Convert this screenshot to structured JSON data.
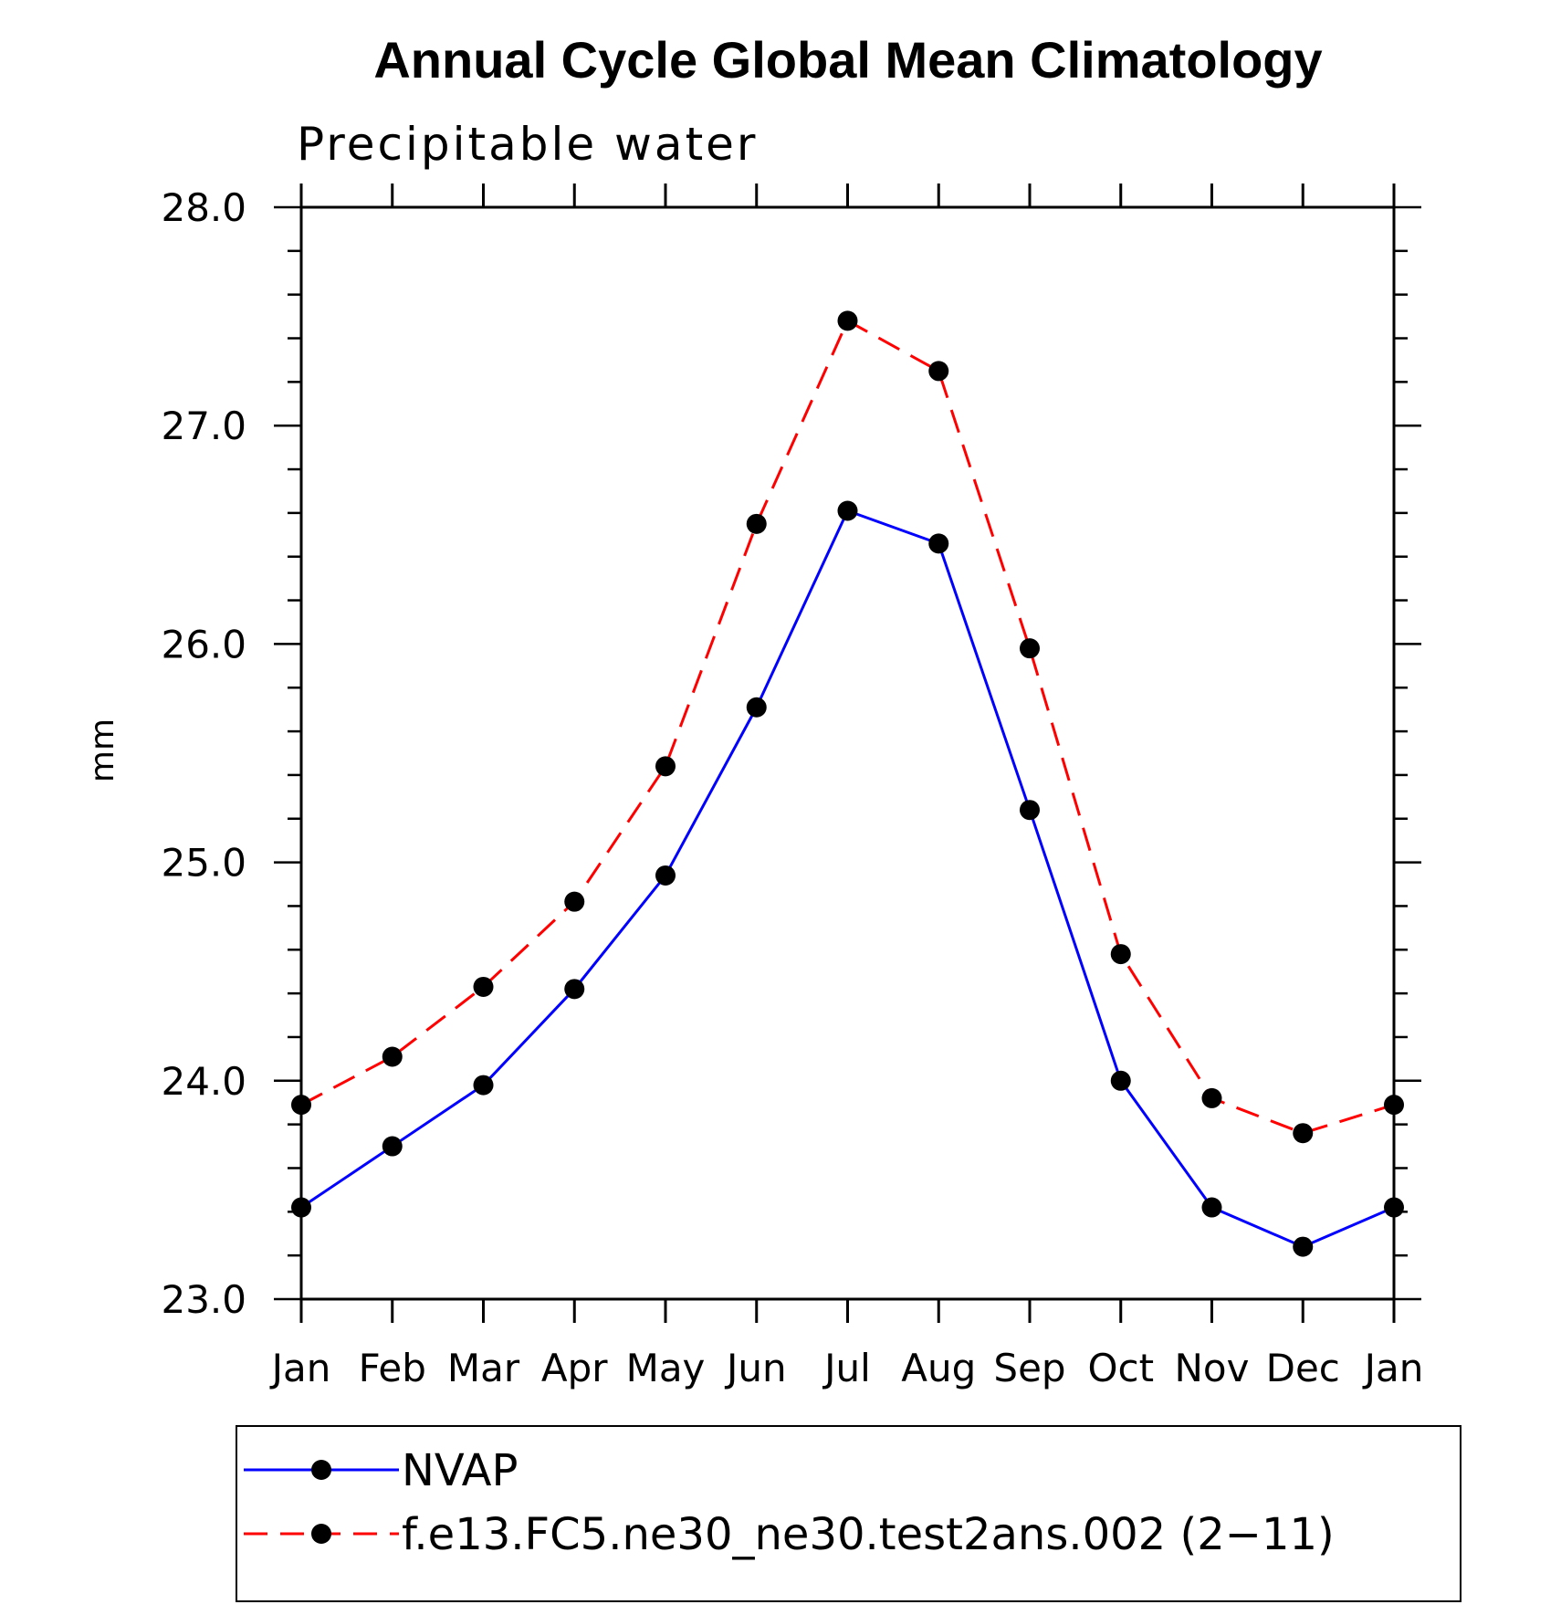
{
  "chart_data": {
    "type": "line",
    "title": "Annual Cycle Global Mean Climatology",
    "subtitle": "Precipitable water",
    "ylabel": "mm",
    "xlabel": "",
    "categories": [
      "Jan",
      "Feb",
      "Mar",
      "Apr",
      "May",
      "Jun",
      "Jul",
      "Aug",
      "Sep",
      "Oct",
      "Nov",
      "Dec",
      "Jan"
    ],
    "ylim": [
      23.0,
      28.0
    ],
    "yticks": [
      "23.0",
      "24.0",
      "25.0",
      "26.0",
      "27.0",
      "28.0"
    ],
    "grid": false,
    "legend_position": "bottom",
    "series": [
      {
        "name": "NVAP",
        "color": "#0000ff",
        "line_style": "solid",
        "marker": "filled-circle",
        "values": [
          23.42,
          23.7,
          23.98,
          24.42,
          24.94,
          25.71,
          26.61,
          26.46,
          25.24,
          24.0,
          23.42,
          23.24,
          23.42
        ]
      },
      {
        "name": "f.e13.FC5.ne30_ne30.test2ans.002 (2−11)",
        "color": "#ff0000",
        "line_style": "dashed",
        "marker": "filled-circle",
        "values": [
          23.89,
          24.11,
          24.43,
          24.82,
          25.44,
          26.55,
          27.48,
          27.25,
          25.98,
          24.58,
          23.92,
          23.76,
          23.89
        ]
      }
    ]
  }
}
